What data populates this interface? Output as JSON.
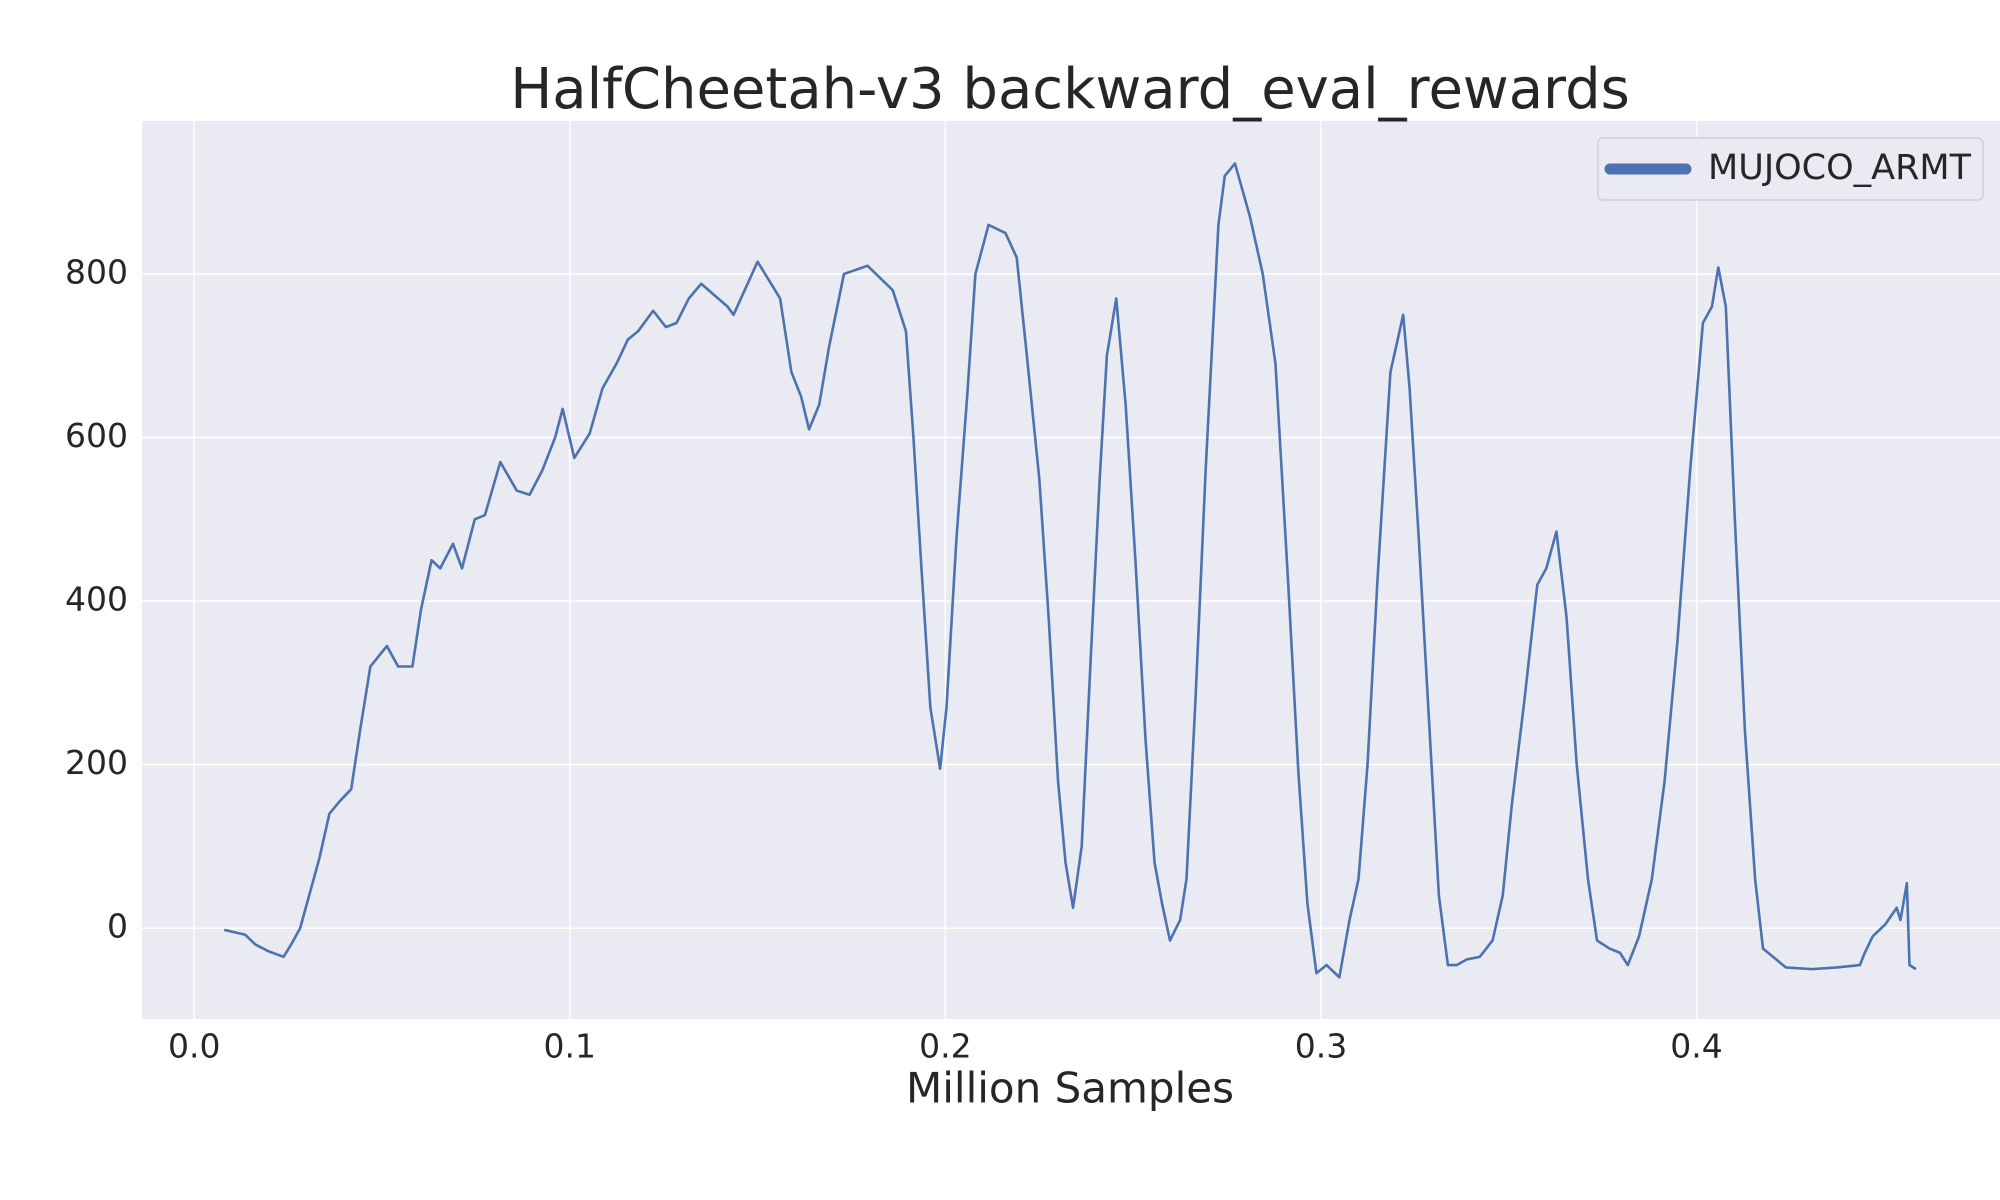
{
  "chart_data": {
    "type": "line",
    "title": "HalfCheetah-v3 backward_eval_rewards",
    "xlabel": "Million Samples",
    "xlim": [
      -0.0139,
      0.4808
    ],
    "ylim": [
      -111,
      987
    ],
    "xticks": [
      {
        "value": 0,
        "label": "0.0"
      },
      0.1,
      0.2,
      0.3,
      0.4
    ],
    "yticks": [
      0,
      200,
      400,
      600,
      800
    ],
    "grid": true,
    "legend": "upper right",
    "x": [
      0.008,
      0.0136,
      0.0163,
      0.0197,
      0.0238,
      0.0258,
      0.0282,
      0.0306,
      0.0333,
      0.036,
      0.0387,
      0.0418,
      0.0441,
      0.0469,
      0.0513,
      0.0543,
      0.0581,
      0.0604,
      0.0632,
      0.0655,
      0.0689,
      0.0713,
      0.0747,
      0.0774,
      0.0815,
      0.0859,
      0.0893,
      0.0927,
      0.0961,
      0.0981,
      0.1012,
      0.1053,
      0.1087,
      0.1124,
      0.1155,
      0.1182,
      0.1222,
      0.1256,
      0.1284,
      0.1317,
      0.135,
      0.142,
      0.1436,
      0.15,
      0.152,
      0.156,
      0.159,
      0.1616,
      0.1637,
      0.1664,
      0.169,
      0.173,
      0.1793,
      0.186,
      0.1895,
      0.1915,
      0.1935,
      0.196,
      0.1986,
      0.2003,
      0.203,
      0.2058,
      0.208,
      0.2115,
      0.216,
      0.219,
      0.2217,
      0.225,
      0.2275,
      0.23,
      0.232,
      0.234,
      0.2363,
      0.2387,
      0.2411,
      0.243,
      0.2455,
      0.248,
      0.2506,
      0.2533,
      0.2557,
      0.2577,
      0.2598,
      0.2625,
      0.2642,
      0.2666,
      0.2693,
      0.2727,
      0.2744,
      0.2771,
      0.2811,
      0.2845,
      0.2879,
      0.2913,
      0.294,
      0.2964,
      0.2988,
      0.3015,
      0.3049,
      0.3076,
      0.31,
      0.3124,
      0.3151,
      0.3185,
      0.3219,
      0.3236,
      0.326,
      0.3287,
      0.3314,
      0.3338,
      0.3362,
      0.3389,
      0.3423,
      0.3457,
      0.3484,
      0.3508,
      0.3542,
      0.3576,
      0.36,
      0.3627,
      0.3654,
      0.3681,
      0.3711,
      0.3735,
      0.3769,
      0.3796,
      0.3817,
      0.3847,
      0.3881,
      0.3915,
      0.3949,
      0.3983,
      0.4017,
      0.4041,
      0.4058,
      0.4078,
      0.4102,
      0.4129,
      0.4156,
      0.4177,
      0.4204,
      0.4238,
      0.4306,
      0.4374,
      0.4435,
      0.4448,
      0.4469,
      0.4503,
      0.4533,
      0.4543,
      0.456,
      0.4567,
      0.4584
    ],
    "series": [
      {
        "name": "MUJOCO_ARMT",
        "color": "#4c72b0",
        "values": [
          -2,
          -8,
          -20,
          -28,
          -35,
          -20,
          0,
          40,
          85,
          140,
          155,
          170,
          240,
          320,
          345,
          320,
          320,
          390,
          450,
          440,
          470,
          440,
          500,
          505,
          570,
          535,
          530,
          560,
          600,
          635,
          575,
          605,
          660,
          690,
          720,
          730,
          755,
          735,
          740,
          770,
          788,
          760,
          750,
          815,
          800,
          770,
          680,
          650,
          610,
          640,
          710,
          800,
          810,
          780,
          730,
          600,
          450,
          270,
          195,
          270,
          480,
          650,
          800,
          860,
          850,
          820,
          700,
          550,
          380,
          180,
          80,
          25,
          100,
          330,
          550,
          700,
          770,
          640,
          450,
          230,
          80,
          30,
          -15,
          10,
          60,
          280,
          560,
          860,
          920,
          935,
          870,
          800,
          690,
          420,
          190,
          30,
          -55,
          -45,
          -60,
          10,
          60,
          200,
          430,
          680,
          750,
          660,
          480,
          260,
          40,
          -45,
          -45,
          -38,
          -35,
          -15,
          40,
          150,
          280,
          420,
          440,
          485,
          380,
          200,
          60,
          -15,
          -25,
          -30,
          -45,
          -10,
          60,
          180,
          350,
          560,
          740,
          760,
          808,
          760,
          500,
          240,
          60,
          -25,
          -35,
          -48,
          -50,
          -48,
          -45,
          -30,
          -10,
          5,
          25,
          10,
          55,
          -45,
          -50
        ]
      }
    ]
  }
}
